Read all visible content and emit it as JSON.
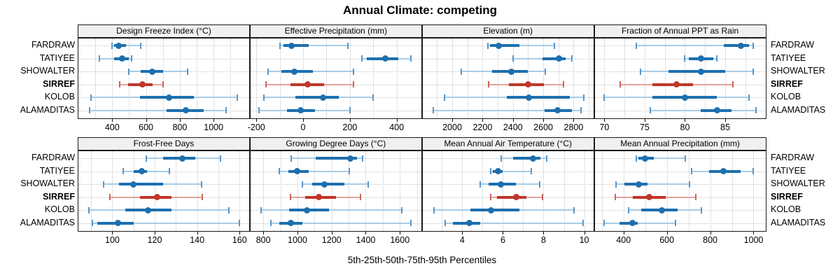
{
  "title": "Annual Climate: competing",
  "xlabel": "5th-25th-50th-75th-95th Percentiles",
  "percentiles": [
    "5th",
    "25th",
    "50th",
    "75th",
    "95th"
  ],
  "sites": [
    {
      "name": "FARDRAW",
      "bold": false
    },
    {
      "name": "TATIYEE",
      "bold": false
    },
    {
      "name": "SHOWALTER",
      "bold": false
    },
    {
      "name": "SIRREF",
      "bold": true
    },
    {
      "name": "KOLOB",
      "bold": false
    },
    {
      "name": "ALAMADITAS",
      "bold": false
    }
  ],
  "highlight_site": "SIRREF",
  "colors": {
    "normal": "#1d6fae",
    "normal_light": "#a9cce6",
    "normal_cap": "#5797cc",
    "highlight": "#bf362a",
    "highlight_light": "#e4a39c",
    "highlight_cap": "#cb655a",
    "strip_bg": "#f0f0f0",
    "panel_border": "#1b1b1b",
    "grid": "#c6c6c6",
    "text": "#000000"
  },
  "chart_data": [
    {
      "type": "interval",
      "title": "Design Freeze Index (°C)",
      "xlim": [
        200,
        1210
      ],
      "ticks": [
        400,
        600,
        800,
        1000
      ],
      "grid_step": 100,
      "series": [
        {
          "name": "FARDRAW",
          "values": [
            400,
            412,
            437,
            482,
            570
          ]
        },
        {
          "name": "TATIYEE",
          "values": [
            325,
            410,
            460,
            500,
            515
          ]
        },
        {
          "name": "SHOWALTER",
          "values": [
            500,
            570,
            635,
            700,
            845
          ]
        },
        {
          "name": "SIRREF",
          "values": [
            445,
            495,
            578,
            640,
            700
          ]
        },
        {
          "name": "KOLOB",
          "values": [
            275,
            565,
            735,
            885,
            1140
          ]
        },
        {
          "name": "ALAMADITAS",
          "values": [
            265,
            720,
            835,
            940,
            1075
          ]
        }
      ]
    },
    {
      "type": "interval",
      "title": "Effective Precipitation (mm)",
      "xlim": [
        -225,
        505
      ],
      "ticks": [
        -200,
        0,
        200,
        400
      ],
      "grid_step": 100,
      "series": [
        {
          "name": "FARDRAW",
          "values": [
            -100,
            -85,
            -50,
            25,
            190
          ]
        },
        {
          "name": "TATIYEE",
          "values": [
            250,
            272,
            352,
            407,
            462
          ]
        },
        {
          "name": "SHOWALTER",
          "values": [
            -150,
            -93,
            -38,
            42,
            215
          ]
        },
        {
          "name": "SIRREF",
          "values": [
            -160,
            -53,
            20,
            90,
            215
          ]
        },
        {
          "name": "KOLOB",
          "values": [
            -168,
            -33,
            85,
            152,
            300
          ]
        },
        {
          "name": "ALAMADITAS",
          "values": [
            -188,
            -70,
            -10,
            52,
            200
          ]
        }
      ]
    },
    {
      "type": "interval",
      "title": "Elevation (m)",
      "xlim": [
        1805,
        2930
      ],
      "ticks": [
        2000,
        2200,
        2400,
        2600,
        2800
      ],
      "grid_step": 100,
      "series": [
        {
          "name": "FARDRAW",
          "values": [
            2235,
            2250,
            2305,
            2445,
            2675
          ]
        },
        {
          "name": "TATIYEE",
          "values": [
            2400,
            2595,
            2705,
            2745,
            2790
          ]
        },
        {
          "name": "SHOWALTER",
          "values": [
            2060,
            2265,
            2390,
            2500,
            2615
          ]
        },
        {
          "name": "SIRREF",
          "values": [
            2240,
            2375,
            2500,
            2605,
            2735
          ]
        },
        {
          "name": "KOLOB",
          "values": [
            1950,
            2360,
            2505,
            2775,
            2865
          ]
        },
        {
          "name": "ALAMADITAS",
          "values": [
            1875,
            2610,
            2695,
            2790,
            2850
          ]
        }
      ]
    },
    {
      "type": "interval",
      "title": "Fraction of Annual PPT as Rain",
      "xlim": [
        68.8,
        90
      ],
      "ticks": [
        70,
        75,
        80,
        85
      ],
      "grid_step": 2.5,
      "series": [
        {
          "name": "FARDRAW",
          "values": [
            74,
            84.8,
            87,
            88,
            88.5
          ]
        },
        {
          "name": "TATIYEE",
          "values": [
            80,
            80.5,
            82,
            83.5,
            84
          ]
        },
        {
          "name": "SHOWALTER",
          "values": [
            74.5,
            78,
            82,
            85,
            88.5
          ]
        },
        {
          "name": "SIRREF",
          "values": [
            72,
            76,
            79,
            81,
            86
          ]
        },
        {
          "name": "KOLOB",
          "values": [
            70,
            76,
            80,
            84,
            88
          ]
        },
        {
          "name": "ALAMADITAS",
          "values": [
            75.7,
            82,
            84,
            85.8,
            88.8
          ]
        }
      ]
    },
    {
      "type": "interval",
      "title": "Frost-Free Days",
      "xlim": [
        84,
        164.5
      ],
      "ticks": [
        100,
        120,
        140,
        160
      ],
      "grid_step": 10,
      "series": [
        {
          "name": "FARDRAW",
          "values": [
            116,
            124,
            133,
            139,
            151
          ]
        },
        {
          "name": "TATIYEE",
          "values": [
            105,
            110,
            114,
            116.5,
            127
          ]
        },
        {
          "name": "SHOWALTER",
          "values": [
            96,
            103,
            110,
            124,
            142
          ]
        },
        {
          "name": "SIRREF",
          "values": [
            99,
            113,
            121,
            128,
            142.5
          ]
        },
        {
          "name": "KOLOB",
          "values": [
            89,
            106,
            117,
            128,
            155
          ]
        },
        {
          "name": "ALAMADITAS",
          "values": [
            90.5,
            93,
            102.5,
            110,
            160
          ]
        }
      ]
    },
    {
      "type": "interval",
      "title": "Growing Degree Days (°C)",
      "xlim": [
        725,
        1725
      ],
      "ticks": [
        800,
        1000,
        1200,
        1400,
        1600
      ],
      "grid_step": 100,
      "series": [
        {
          "name": "FARDRAW",
          "values": [
            965,
            1105,
            1310,
            1350,
            1380
          ]
        },
        {
          "name": "TATIYEE",
          "values": [
            895,
            945,
            1000,
            1065,
            1305
          ]
        },
        {
          "name": "SHOWALTER",
          "values": [
            1030,
            1085,
            1160,
            1275,
            1415
          ]
        },
        {
          "name": "SIRREF",
          "values": [
            960,
            1045,
            1125,
            1225,
            1370
          ]
        },
        {
          "name": "KOLOB",
          "values": [
            785,
            950,
            1055,
            1185,
            1610
          ]
        },
        {
          "name": "ALAMADITAS",
          "values": [
            845,
            895,
            960,
            1030,
            1665
          ]
        }
      ]
    },
    {
      "type": "interval",
      "title": "Mean Annual Air Temperature (°C)",
      "xlim": [
        2.05,
        10.45
      ],
      "ticks": [
        4,
        6,
        8,
        10
      ],
      "grid_step": 1,
      "series": [
        {
          "name": "FARDRAW",
          "values": [
            5.9,
            6.5,
            7.5,
            7.85,
            8.15
          ]
        },
        {
          "name": "TATIYEE",
          "values": [
            5.4,
            5.5,
            5.75,
            6.0,
            7.4
          ]
        },
        {
          "name": "SHOWALTER",
          "values": [
            4.9,
            5.3,
            5.9,
            6.65,
            7.8
          ]
        },
        {
          "name": "SIRREF",
          "values": [
            5.4,
            5.7,
            6.65,
            7.15,
            7.95
          ]
        },
        {
          "name": "KOLOB",
          "values": [
            2.6,
            4.4,
            5.4,
            6.8,
            9.5
          ]
        },
        {
          "name": "ALAMADITAS",
          "values": [
            3.15,
            3.55,
            4.35,
            4.9,
            9.95
          ]
        }
      ]
    },
    {
      "type": "interval",
      "title": "Mean Annual Precipitation (mm)",
      "xlim": [
        267,
        1055
      ],
      "ticks": [
        400,
        600,
        800,
        1000
      ],
      "grid_step": 100,
      "series": [
        {
          "name": "FARDRAW",
          "values": [
            460,
            470,
            500,
            540,
            685
          ]
        },
        {
          "name": "TATIYEE",
          "values": [
            715,
            795,
            860,
            940,
            1000
          ]
        },
        {
          "name": "SHOWALTER",
          "values": [
            365,
            405,
            470,
            512,
            705
          ]
        },
        {
          "name": "SIRREF",
          "values": [
            363,
            442,
            520,
            593,
            733
          ]
        },
        {
          "name": "KOLOB",
          "values": [
            424,
            480,
            577,
            650,
            760
          ]
        },
        {
          "name": "ALAMADITAS",
          "values": [
            310,
            380,
            440,
            465,
            640
          ]
        }
      ]
    }
  ]
}
